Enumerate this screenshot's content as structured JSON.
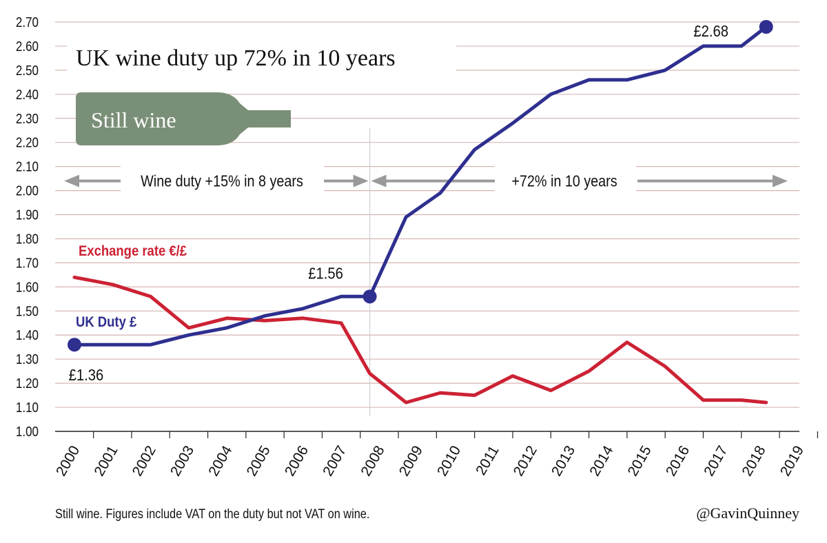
{
  "chart_data": {
    "type": "line",
    "title": "UK wine duty up 72% in 10 years",
    "badge": "Still wine",
    "x": [
      "2000",
      "2001",
      "2002",
      "2003",
      "2004",
      "2005",
      "2006",
      "2007",
      "2008",
      "2009",
      "2010",
      "2011",
      "2012",
      "2013",
      "2014",
      "2015",
      "2016",
      "2017",
      "2018",
      "2019"
    ],
    "ylim": [
      1.0,
      2.7
    ],
    "yticks": [
      "1.00",
      "1.10",
      "1.20",
      "1.30",
      "1.40",
      "1.50",
      "1.60",
      "1.70",
      "1.80",
      "1.90",
      "2.00",
      "2.10",
      "2.20",
      "2.30",
      "2.40",
      "2.50",
      "2.60",
      "2.70"
    ],
    "grid": true,
    "series": [
      {
        "name": "UK Duty £",
        "color": "#2e2f8f",
        "points": [
          {
            "x": 2000.0,
            "y": 1.36
          },
          {
            "x": 2001.0,
            "y": 1.36
          },
          {
            "x": 2002.0,
            "y": 1.36
          },
          {
            "x": 2003.0,
            "y": 1.4
          },
          {
            "x": 2004.0,
            "y": 1.43
          },
          {
            "x": 2005.0,
            "y": 1.48
          },
          {
            "x": 2006.0,
            "y": 1.51
          },
          {
            "x": 2007.0,
            "y": 1.56
          },
          {
            "x": 2007.75,
            "y": 1.56
          },
          {
            "x": 2008.7,
            "y": 1.89
          },
          {
            "x": 2009.6,
            "y": 1.99
          },
          {
            "x": 2010.5,
            "y": 2.17
          },
          {
            "x": 2011.5,
            "y": 2.28
          },
          {
            "x": 2012.5,
            "y": 2.4
          },
          {
            "x": 2013.5,
            "y": 2.46
          },
          {
            "x": 2014.5,
            "y": 2.46
          },
          {
            "x": 2015.5,
            "y": 2.5
          },
          {
            "x": 2016.5,
            "y": 2.6
          },
          {
            "x": 2017.5,
            "y": 2.6
          },
          {
            "x": 2018.15,
            "y": 2.68
          }
        ]
      },
      {
        "name": "Exchange rate €/£",
        "color": "#cc2234",
        "points": [
          {
            "x": 2000.0,
            "y": 1.64
          },
          {
            "x": 2001.0,
            "y": 1.61
          },
          {
            "x": 2002.0,
            "y": 1.56
          },
          {
            "x": 2003.0,
            "y": 1.43
          },
          {
            "x": 2004.0,
            "y": 1.47
          },
          {
            "x": 2005.0,
            "y": 1.46
          },
          {
            "x": 2006.0,
            "y": 1.47
          },
          {
            "x": 2007.0,
            "y": 1.45
          },
          {
            "x": 2007.75,
            "y": 1.24
          },
          {
            "x": 2008.7,
            "y": 1.12
          },
          {
            "x": 2009.6,
            "y": 1.16
          },
          {
            "x": 2010.5,
            "y": 1.15
          },
          {
            "x": 2011.5,
            "y": 1.23
          },
          {
            "x": 2012.5,
            "y": 1.17
          },
          {
            "x": 2013.5,
            "y": 1.25
          },
          {
            "x": 2014.5,
            "y": 1.37
          },
          {
            "x": 2015.5,
            "y": 1.27
          },
          {
            "x": 2016.5,
            "y": 1.13
          },
          {
            "x": 2017.5,
            "y": 1.13
          },
          {
            "x": 2018.15,
            "y": 1.12
          }
        ]
      }
    ],
    "markers": [
      {
        "x": 2000.0,
        "y": 1.36,
        "label": "£1.36"
      },
      {
        "x": 2007.75,
        "y": 1.56,
        "label": "£1.56"
      },
      {
        "x": 2018.15,
        "y": 2.68,
        "label": "£2.68"
      }
    ],
    "annotations": {
      "period1": "Wine duty +15% in 8 years",
      "period2": "+72% in 10 years",
      "split_x": 2007.75,
      "arrow_y": 2.04
    }
  },
  "footnote": "Still wine. Figures include VAT on the duty but not VAT on wine.",
  "credit": "@GavinQuinney",
  "colors": {
    "grid": "#d8b4b4",
    "axis": "#222222",
    "arrow": "#9a9a9a",
    "bottle": "#7a8f77"
  }
}
